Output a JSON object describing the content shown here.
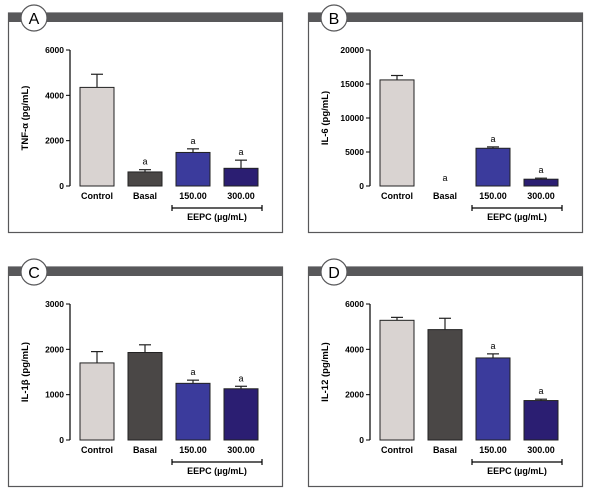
{
  "colors": {
    "header_bar": "#58585a",
    "frame": "#58585a",
    "control": "#d9d3d1",
    "basal": "#4a4746",
    "c150": "#3b3b9c",
    "c300": "#2b1e72",
    "badge": "#ffffff"
  },
  "chart_data": [
    {
      "panel": "A",
      "type": "bar",
      "ylabel": "TNF-α (pg/mL)",
      "ylim": [
        0,
        6000
      ],
      "yticks": [
        0,
        2000,
        4000,
        6000
      ],
      "categories": [
        "Control",
        "Basal",
        "150.00",
        "300.00"
      ],
      "values": [
        4350,
        620,
        1480,
        780
      ],
      "errors": [
        580,
        100,
        160,
        360
      ],
      "annotations": [
        "",
        "a",
        "a",
        "a"
      ],
      "group_label": "EEPC (µg/mL)"
    },
    {
      "panel": "B",
      "type": "bar",
      "ylabel": "IL-6 (pg/mL)",
      "ylim": [
        0,
        20000
      ],
      "yticks": [
        0,
        5000,
        10000,
        15000,
        20000
      ],
      "categories": [
        "Control",
        "Basal",
        "150.00",
        "300.00"
      ],
      "values": [
        15600,
        0,
        5550,
        1000
      ],
      "errors": [
        650,
        0,
        200,
        150
      ],
      "annotations": [
        "",
        "a",
        "a",
        "a"
      ],
      "group_label": "EEPC (µg/mL)"
    },
    {
      "panel": "C",
      "type": "bar",
      "ylabel": "IL-1β (pg/mL)",
      "ylim": [
        0,
        3000
      ],
      "yticks": [
        0,
        1000,
        2000,
        3000
      ],
      "categories": [
        "Control",
        "Basal",
        "150.00",
        "300.00"
      ],
      "values": [
        1700,
        1930,
        1250,
        1130
      ],
      "errors": [
        250,
        170,
        70,
        55
      ],
      "annotations": [
        "",
        "",
        "a",
        "a"
      ],
      "group_label": "EEPC (µg/mL)"
    },
    {
      "panel": "D",
      "type": "bar",
      "ylabel": "IL-12 (pg/mL)",
      "ylim": [
        0,
        6000
      ],
      "yticks": [
        0,
        2000,
        4000,
        6000
      ],
      "categories": [
        "Control",
        "Basal",
        "150.00",
        "300.00"
      ],
      "values": [
        5280,
        4870,
        3620,
        1740
      ],
      "errors": [
        130,
        500,
        180,
        60
      ],
      "annotations": [
        "",
        "",
        "a",
        "a"
      ],
      "group_label": "EEPC (µg/mL)"
    }
  ]
}
